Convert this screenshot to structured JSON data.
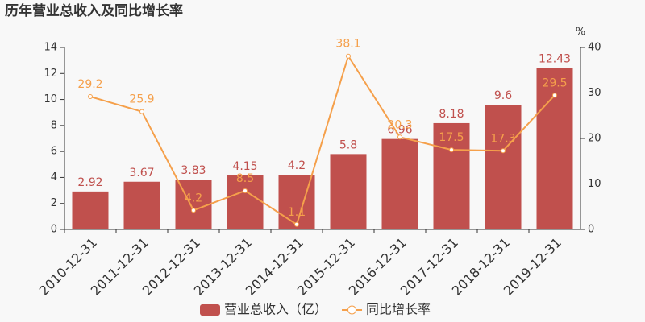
{
  "chart_data": {
    "type": "bar",
    "title": "历年营业总收入及同比增长率",
    "categories": [
      "2010-12-31",
      "2011-12-31",
      "2012-12-31",
      "2013-12-31",
      "2014-12-31",
      "2015-12-31",
      "2016-12-31",
      "2017-12-31",
      "2018-12-31",
      "2019-12-31"
    ],
    "series": [
      {
        "name": "营业总收入（亿）",
        "type": "bar",
        "color": "#c0504d",
        "values": [
          2.92,
          3.67,
          3.83,
          4.15,
          4.2,
          5.8,
          6.96,
          8.18,
          9.6,
          12.43
        ]
      },
      {
        "name": "同比增长率",
        "type": "line",
        "axis": "y2",
        "color": "#f5a04b",
        "values": [
          29.2,
          25.9,
          4.2,
          8.5,
          1.1,
          38.1,
          20.3,
          17.5,
          17.3,
          29.5
        ]
      }
    ],
    "ylim": [
      0,
      14
    ],
    "yticks": [
      0,
      2,
      4,
      6,
      8,
      10,
      12,
      14
    ],
    "y2label": "%",
    "y2lim": [
      0,
      40
    ],
    "y2ticks": [
      0,
      10,
      20,
      30,
      40
    ]
  }
}
